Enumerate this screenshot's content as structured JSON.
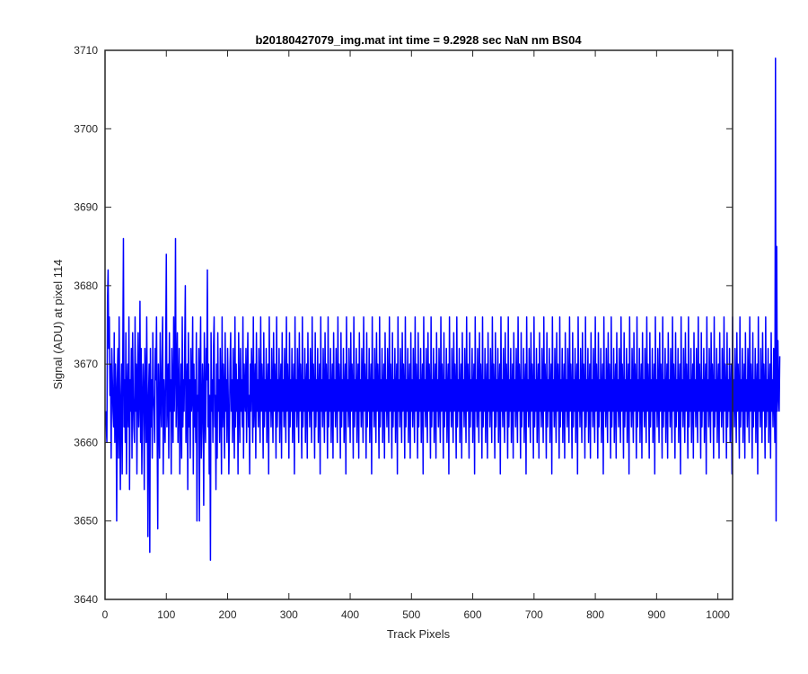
{
  "chart_data": {
    "type": "line",
    "title": "b20180427079_img.mat int time = 9.2928 sec  NaN nm BS04",
    "xlabel": "Track Pixels",
    "ylabel": "Signal (ADU) at pixel 114",
    "xlim": [
      0,
      1024
    ],
    "ylim": [
      3640,
      3710
    ],
    "xticks": [
      0,
      100,
      200,
      300,
      400,
      500,
      600,
      700,
      800,
      900,
      1000
    ],
    "yticks": [
      3640,
      3650,
      3660,
      3670,
      3680,
      3690,
      3700,
      3710
    ],
    "grid": false,
    "line_color": "#0000ff",
    "series": [
      {
        "name": "",
        "x_start": 1,
        "x_step": 1,
        "values": [
          3664,
          3662,
          3660,
          3678,
          3682,
          3672,
          3676,
          3666,
          3670,
          3658,
          3672,
          3668,
          3664,
          3662,
          3674,
          3660,
          3670,
          3666,
          3650,
          3668,
          3672,
          3658,
          3676,
          3664,
          3654,
          3666,
          3670,
          3656,
          3672,
          3686,
          3662,
          3668,
          3660,
          3674,
          3656,
          3666,
          3670,
          3662,
          3676,
          3654,
          3668,
          3664,
          3672,
          3658,
          3674,
          3666,
          3662,
          3660,
          3676,
          3664,
          3670,
          3656,
          3668,
          3674,
          3662,
          3666,
          3678,
          3660,
          3672,
          3656,
          3664,
          3670,
          3666,
          3654,
          3672,
          3668,
          3660,
          3676,
          3664,
          3648,
          3666,
          3670,
          3646,
          3672,
          3662,
          3668,
          3658,
          3674,
          3666,
          3664,
          3660,
          3672,
          3668,
          3676,
          3662,
          3649,
          3670,
          3664,
          3658,
          3674,
          3666,
          3662,
          3670,
          3676,
          3656,
          3668,
          3664,
          3660,
          3672,
          3684,
          3662,
          3666,
          3670,
          3658,
          3674,
          3664,
          3668,
          3656,
          3672,
          3666,
          3660,
          3676,
          3664,
          3670,
          3686,
          3662,
          3668,
          3674,
          3660,
          3666,
          3672,
          3656,
          3664,
          3670,
          3658,
          3676,
          3662,
          3668,
          3664,
          3672,
          3680,
          3660,
          3666,
          3670,
          3654,
          3674,
          3662,
          3668,
          3658,
          3672,
          3664,
          3666,
          3676,
          3656,
          3670,
          3662,
          3668,
          3660,
          3674,
          3650,
          3666,
          3664,
          3672,
          3650,
          3668,
          3676,
          3658,
          3662,
          3670,
          3666,
          3652,
          3674,
          3664,
          3660,
          3672,
          3668,
          3682,
          3662,
          3670,
          3656,
          3666,
          3645,
          3674,
          3664,
          3668,
          3660,
          3672,
          3676,
          3662,
          3666,
          3654,
          3670,
          3658,
          3674,
          3664,
          3668,
          3660,
          3672,
          3666,
          3656,
          3676,
          3662,
          3670,
          3666,
          3658,
          3674,
          3664,
          3668,
          3660,
          3672,
          3666,
          3656,
          3662,
          3670,
          3674,
          3664,
          3668,
          3660,
          3672,
          3666,
          3658,
          3676,
          3662,
          3670,
          3664,
          3668,
          3656,
          3674,
          3666,
          3660,
          3672,
          3664,
          3668,
          3662,
          3676,
          3658,
          3670,
          3666,
          3664,
          3672,
          3660,
          3668,
          3674,
          3662,
          3666,
          3656,
          3670,
          3664,
          3672,
          3668,
          3660,
          3676,
          3662,
          3666,
          3670,
          3658,
          3674,
          3664,
          3668,
          3662,
          3672,
          3666,
          3660,
          3676,
          3664,
          3670,
          3666,
          3658,
          3674,
          3662,
          3668,
          3664,
          3672,
          3660,
          3666,
          3670,
          3656,
          3676,
          3664,
          3668,
          3662,
          3672,
          3666,
          3660,
          3674,
          3664,
          3670,
          3666,
          3658,
          3676,
          3662,
          3668,
          3664,
          3672,
          3660,
          3666,
          3670,
          3658,
          3674,
          3664,
          3668,
          3662,
          3672,
          3666,
          3660,
          3676,
          3664,
          3670,
          3666,
          3658,
          3674,
          3662,
          3668,
          3664,
          3672,
          3660,
          3666,
          3670,
          3656,
          3676,
          3664,
          3668,
          3662,
          3672,
          3666,
          3660,
          3674,
          3664,
          3670,
          3666,
          3658,
          3676,
          3662,
          3668,
          3664,
          3672,
          3660,
          3666,
          3670,
          3658,
          3674,
          3664,
          3668,
          3662,
          3672,
          3666,
          3660,
          3676,
          3664,
          3670,
          3666,
          3658,
          3674,
          3662,
          3668,
          3664,
          3672,
          3660,
          3666,
          3670,
          3656,
          3676,
          3664,
          3668,
          3662,
          3672,
          3666,
          3660,
          3674,
          3664,
          3670,
          3666,
          3658,
          3676,
          3662,
          3668,
          3664,
          3672,
          3660,
          3666,
          3670,
          3658,
          3674,
          3664,
          3668,
          3662,
          3672,
          3666,
          3660,
          3676,
          3664,
          3670,
          3666,
          3658,
          3674,
          3662,
          3668,
          3664,
          3672,
          3660,
          3666,
          3670,
          3656,
          3676,
          3664,
          3668,
          3662,
          3672,
          3666,
          3660,
          3674,
          3664,
          3670,
          3666,
          3658,
          3676,
          3662,
          3668,
          3664,
          3672,
          3660,
          3666,
          3670,
          3658,
          3674,
          3664,
          3668,
          3662,
          3672,
          3666,
          3660,
          3676,
          3664,
          3670,
          3666,
          3658,
          3674,
          3662,
          3668,
          3664,
          3672,
          3660,
          3666,
          3670,
          3656,
          3676,
          3664,
          3668,
          3662,
          3672,
          3666,
          3660,
          3674,
          3664,
          3670,
          3666,
          3658,
          3676,
          3662,
          3668,
          3664,
          3672,
          3660,
          3666,
          3670,
          3658,
          3674,
          3664,
          3668,
          3662,
          3672,
          3666,
          3660,
          3676,
          3664,
          3670,
          3666,
          3658,
          3674,
          3662,
          3668,
          3664,
          3672,
          3660,
          3666,
          3670,
          3656,
          3676,
          3664,
          3668,
          3662,
          3672,
          3666,
          3660,
          3674,
          3664,
          3670,
          3666,
          3658,
          3676,
          3662,
          3668,
          3664,
          3672,
          3660,
          3666,
          3670,
          3658,
          3674,
          3664,
          3668,
          3662,
          3672,
          3666,
          3660,
          3676,
          3664,
          3670,
          3666,
          3658,
          3674,
          3662,
          3668,
          3664,
          3672,
          3660,
          3666,
          3670,
          3656,
          3676,
          3664,
          3668,
          3662,
          3672,
          3666,
          3660,
          3674,
          3664,
          3670,
          3666,
          3658,
          3676,
          3662,
          3668,
          3664,
          3672,
          3660,
          3666,
          3670,
          3658,
          3674,
          3664,
          3668,
          3662,
          3672,
          3666,
          3660,
          3676,
          3664,
          3670,
          3666,
          3658,
          3674,
          3662,
          3668,
          3664,
          3672,
          3660,
          3666,
          3670,
          3656,
          3676,
          3664,
          3668,
          3662,
          3672,
          3666,
          3660,
          3674,
          3664,
          3670,
          3666,
          3658,
          3676,
          3662,
          3668,
          3664,
          3672,
          3660,
          3666,
          3670,
          3658,
          3674,
          3664,
          3668,
          3662,
          3672,
          3666,
          3660,
          3676,
          3664,
          3670,
          3666,
          3658,
          3674,
          3662,
          3668,
          3664,
          3672,
          3660,
          3666,
          3670,
          3656,
          3676,
          3664,
          3668,
          3662,
          3672,
          3666,
          3660,
          3674,
          3664,
          3670,
          3666,
          3658,
          3676,
          3662,
          3668,
          3664,
          3672,
          3660,
          3666,
          3670,
          3658,
          3674,
          3664,
          3668,
          3662,
          3672,
          3666,
          3660,
          3676,
          3664,
          3670,
          3666,
          3658,
          3674,
          3662,
          3668,
          3664,
          3672,
          3660,
          3666,
          3670,
          3656,
          3676,
          3664,
          3668,
          3662,
          3672,
          3666,
          3660,
          3674,
          3664,
          3670,
          3666,
          3658,
          3676,
          3662,
          3668,
          3664,
          3672,
          3660,
          3666,
          3670,
          3658,
          3674,
          3664,
          3668,
          3662,
          3672,
          3666,
          3660,
          3676,
          3664,
          3670,
          3666,
          3658,
          3674,
          3662,
          3668,
          3664,
          3672,
          3660,
          3666,
          3670,
          3656,
          3676,
          3664,
          3668,
          3662,
          3672,
          3666,
          3660,
          3674,
          3664,
          3670,
          3666,
          3658,
          3676,
          3662,
          3668,
          3664,
          3672,
          3660,
          3666,
          3670,
          3658,
          3674,
          3664,
          3668,
          3662,
          3672,
          3666,
          3660,
          3676,
          3664,
          3670,
          3666,
          3658,
          3674,
          3662,
          3668,
          3664,
          3672,
          3660,
          3666,
          3670,
          3656,
          3676,
          3664,
          3668,
          3662,
          3672,
          3666,
          3660,
          3674,
          3664,
          3670,
          3666,
          3658,
          3676,
          3662,
          3668,
          3664,
          3672,
          3660,
          3666,
          3670,
          3658,
          3674,
          3664,
          3668,
          3662,
          3672,
          3666,
          3660,
          3676,
          3664,
          3670,
          3666,
          3658,
          3674,
          3662,
          3668,
          3664,
          3672,
          3660,
          3666,
          3670,
          3656,
          3676,
          3664,
          3668,
          3662,
          3672,
          3666,
          3660,
          3674,
          3664,
          3670,
          3666,
          3658,
          3676,
          3662,
          3668,
          3664,
          3672,
          3660,
          3666,
          3670,
          3658,
          3674,
          3664,
          3668,
          3662,
          3672,
          3666,
          3660,
          3676,
          3664,
          3670,
          3666,
          3658,
          3674,
          3662,
          3668,
          3664,
          3672,
          3660,
          3666,
          3670,
          3656,
          3676,
          3664,
          3668,
          3662,
          3672,
          3666,
          3660,
          3674,
          3664,
          3670,
          3666,
          3658,
          3676,
          3662,
          3668,
          3664,
          3672,
          3660,
          3666,
          3670,
          3658,
          3674,
          3664,
          3668,
          3662,
          3672,
          3666,
          3660,
          3676,
          3664,
          3670,
          3666,
          3658,
          3674,
          3662,
          3668,
          3664,
          3672,
          3660,
          3666,
          3670,
          3656,
          3676,
          3664,
          3668,
          3662,
          3672,
          3666,
          3660,
          3674,
          3664,
          3670,
          3666,
          3658,
          3676,
          3662,
          3668,
          3664,
          3672,
          3660,
          3666,
          3670,
          3658,
          3674,
          3664,
          3668,
          3662,
          3672,
          3666,
          3660,
          3676,
          3664,
          3670,
          3666,
          3658,
          3674,
          3662,
          3668,
          3664,
          3672,
          3660,
          3666,
          3670,
          3656,
          3676,
          3664,
          3668,
          3662,
          3672,
          3666,
          3660,
          3674,
          3664,
          3670,
          3666,
          3658,
          3676,
          3662,
          3668,
          3664,
          3672,
          3660,
          3666,
          3670,
          3658,
          3674,
          3664,
          3668,
          3662,
          3672,
          3666,
          3660,
          3676,
          3664,
          3670,
          3666,
          3658,
          3674,
          3662,
          3668,
          3664,
          3672,
          3660,
          3666,
          3670,
          3656,
          3676,
          3664,
          3668,
          3662,
          3672,
          3666,
          3660,
          3674,
          3664,
          3670,
          3666,
          3658,
          3676,
          3662,
          3668,
          3664,
          3672,
          3660,
          3666,
          3670,
          3658,
          3674,
          3664,
          3668,
          3662,
          3672,
          3666,
          3660,
          3676,
          3664,
          3670,
          3666,
          3658,
          3674,
          3662,
          3668,
          3664,
          3672,
          3660,
          3666,
          3670,
          3656,
          3676,
          3664,
          3668,
          3662,
          3672,
          3666,
          3660,
          3674,
          3664,
          3670,
          3666,
          3658,
          3676,
          3662,
          3668,
          3664,
          3672,
          3660,
          3666,
          3670,
          3658,
          3674,
          3664,
          3668,
          3662,
          3672,
          3666,
          3660,
          3676,
          3664,
          3670,
          3666,
          3658,
          3674,
          3662,
          3668,
          3664,
          3672,
          3660,
          3666,
          3670,
          3656,
          3676,
          3664,
          3668,
          3662,
          3672,
          3666,
          3660,
          3674,
          3664,
          3670,
          3666,
          3658,
          3676,
          3662,
          3668,
          3664,
          3672,
          3660,
          3666,
          3670,
          3658,
          3674,
          3664,
          3668,
          3662,
          3672,
          3666,
          3660,
          3676,
          3664,
          3670,
          3666,
          3658,
          3674,
          3662,
          3668,
          3664,
          3672,
          3660,
          3666,
          3670,
          3656,
          3676,
          3664,
          3668,
          3662,
          3672,
          3666,
          3660,
          3674,
          3664,
          3670,
          3666,
          3658,
          3676,
          3662,
          3668,
          3664,
          3672,
          3660,
          3666,
          3670,
          3658,
          3674,
          3664,
          3668,
          3662,
          3672,
          3666,
          3660,
          3709,
          3650,
          3685,
          3664,
          3673,
          3666,
          3664,
          3671
        ]
      }
    ]
  }
}
